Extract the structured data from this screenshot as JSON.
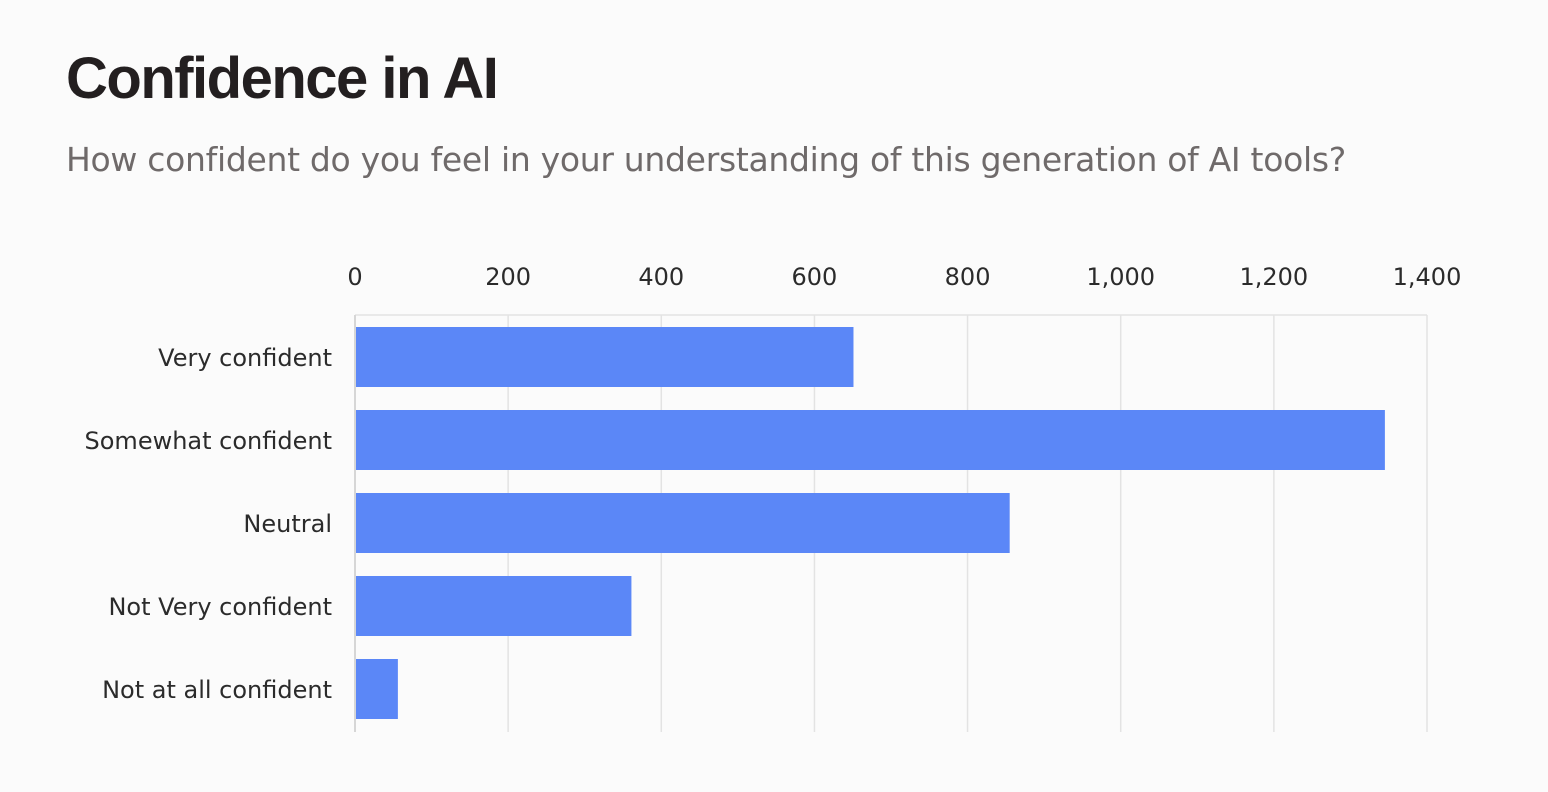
{
  "header": {
    "title": "Confidence in AI",
    "subtitle": "How confident do you feel in your understanding of this generation of AI tools?"
  },
  "chart_data": {
    "type": "bar",
    "orientation": "horizontal",
    "title": "Confidence in AI",
    "subtitle": "How confident do you feel in your understanding of this generation of AI tools?",
    "xlabel": "",
    "ylabel": "",
    "categories": [
      "Very confident",
      "Somewhat confident",
      "Neutral",
      "Not Very confident",
      "Not at all confident"
    ],
    "values": [
      651,
      1345,
      855,
      361,
      56
    ],
    "xlim": [
      0,
      1400
    ],
    "xticks": [
      0,
      200,
      400,
      600,
      800,
      1000,
      1200,
      1400
    ],
    "xtick_labels": [
      "0",
      "200",
      "400",
      "600",
      "800",
      "1,000",
      "1,200",
      "1,400"
    ],
    "axis_position": "top",
    "grid": true,
    "bar_color": "#5b87f7",
    "grid_color": "#e3e3e3"
  }
}
